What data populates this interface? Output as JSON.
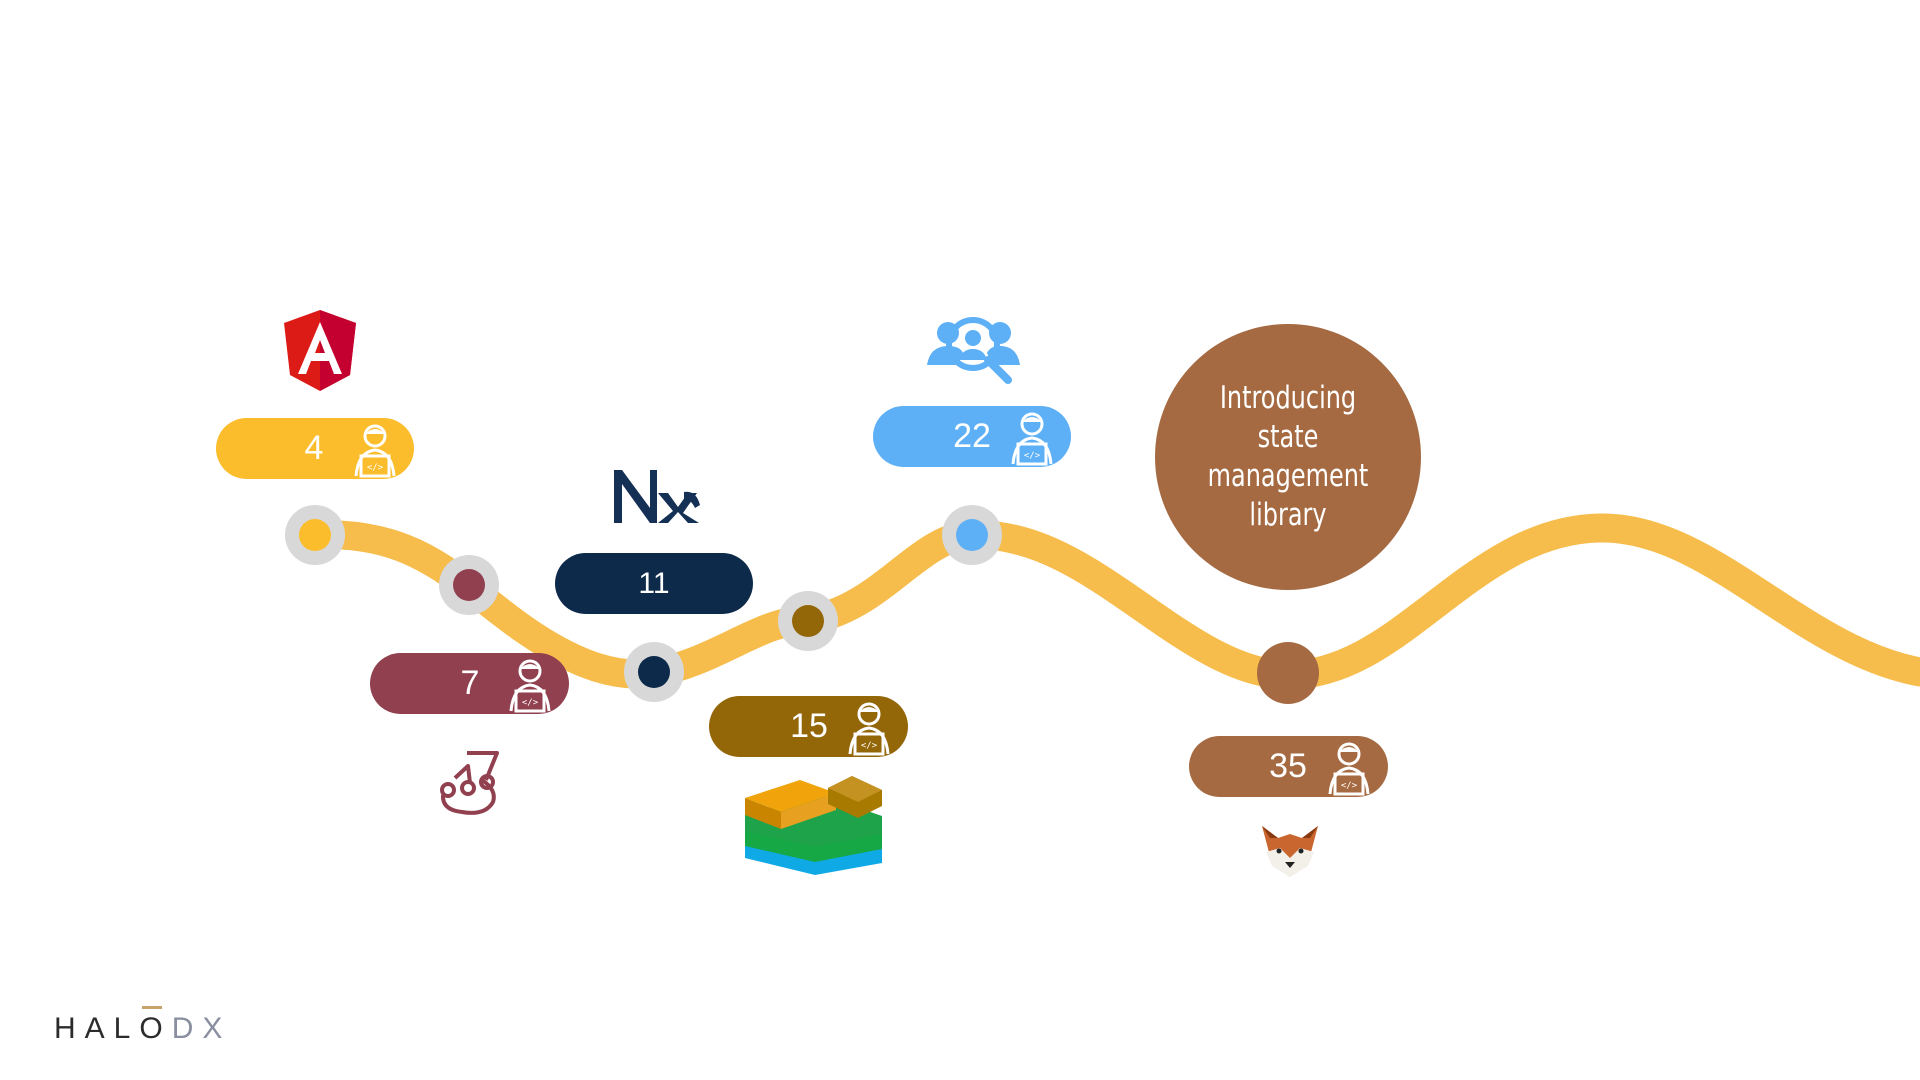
{
  "timeline": {
    "milestones": [
      {
        "id": "angular",
        "count": "4",
        "color": "#fbbd2c"
      },
      {
        "id": "jest",
        "count": "7",
        "color": "#91404f"
      },
      {
        "id": "nx",
        "count": "11",
        "color": "#0d2a4a"
      },
      {
        "id": "stack",
        "count": "15",
        "color": "#936607"
      },
      {
        "id": "research",
        "count": "22",
        "color": "#5eb0f6"
      },
      {
        "id": "akita",
        "count": "35",
        "color": "#a56a41"
      }
    ],
    "track_color": "#f6bd4c",
    "callout": "Introducing state management library"
  },
  "icons": [
    "angular-logo-icon",
    "jest-logo-icon",
    "nx-logo-icon",
    "layered-stack-icon",
    "user-research-icon",
    "akita-dog-icon",
    "developer-icon"
  ],
  "footer": {
    "brand_a": "HAL",
    "brand_o": "O",
    "brand_b": "DX"
  }
}
